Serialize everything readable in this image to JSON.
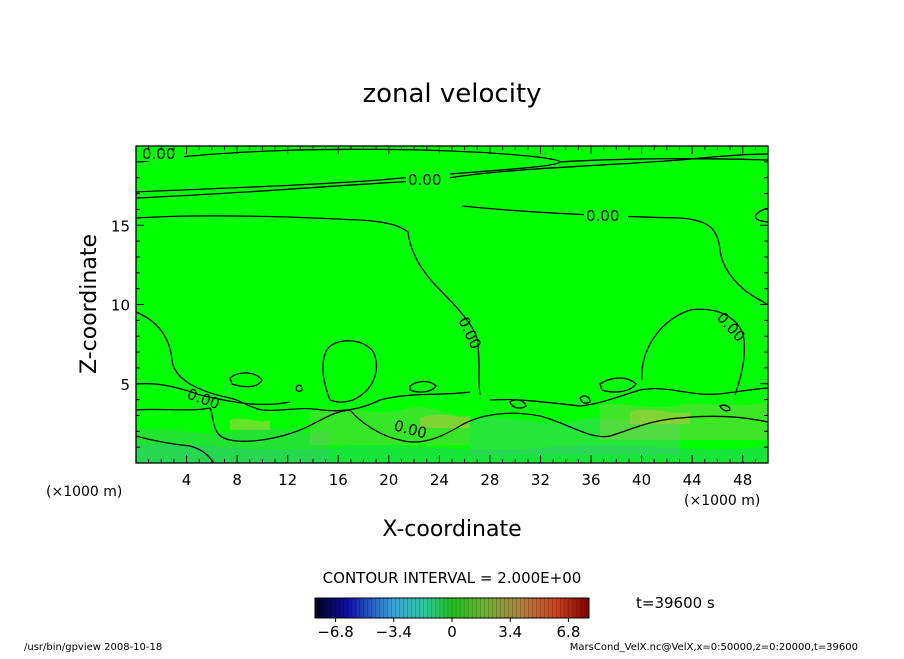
{
  "chart_data": {
    "type": "heatmap",
    "title": "zonal velocity",
    "xlabel": "X-coordinate",
    "ylabel": "Z-coordinate",
    "x_unit_left": "(×1000 m)",
    "x_unit_right": "(×1000 m)",
    "xlim": [
      0,
      50
    ],
    "ylim": [
      0,
      20
    ],
    "xticks": [
      4,
      8,
      12,
      16,
      20,
      24,
      28,
      32,
      36,
      40,
      44,
      48
    ],
    "yticks": [
      5,
      10,
      15
    ],
    "contour_labels": [
      "0.00",
      "0.00",
      "0.00",
      "0.00",
      "0.00",
      "0.00",
      "0.00"
    ],
    "contour_interval_text": "CONTOUR INTERVAL = 2.000E+00",
    "time_text": "t=39600 s",
    "colorbar": {
      "ticks": [
        -6.8,
        -3.4,
        0,
        3.4,
        6.8
      ],
      "tick_labels": [
        "−6.8",
        "−3.4",
        "0",
        "3.4",
        "6.8"
      ],
      "range": [
        -8,
        8
      ]
    },
    "footer_left": "/usr/bin/gpview   2008-10-18",
    "footer_right": "MarsCond_VelX.nc@VelX,x=0:50000,z=0:20000,t=39600",
    "colors": {
      "background_field": "#00ff00",
      "low_end": "#000066",
      "high_end": "#cc0000"
    }
  }
}
